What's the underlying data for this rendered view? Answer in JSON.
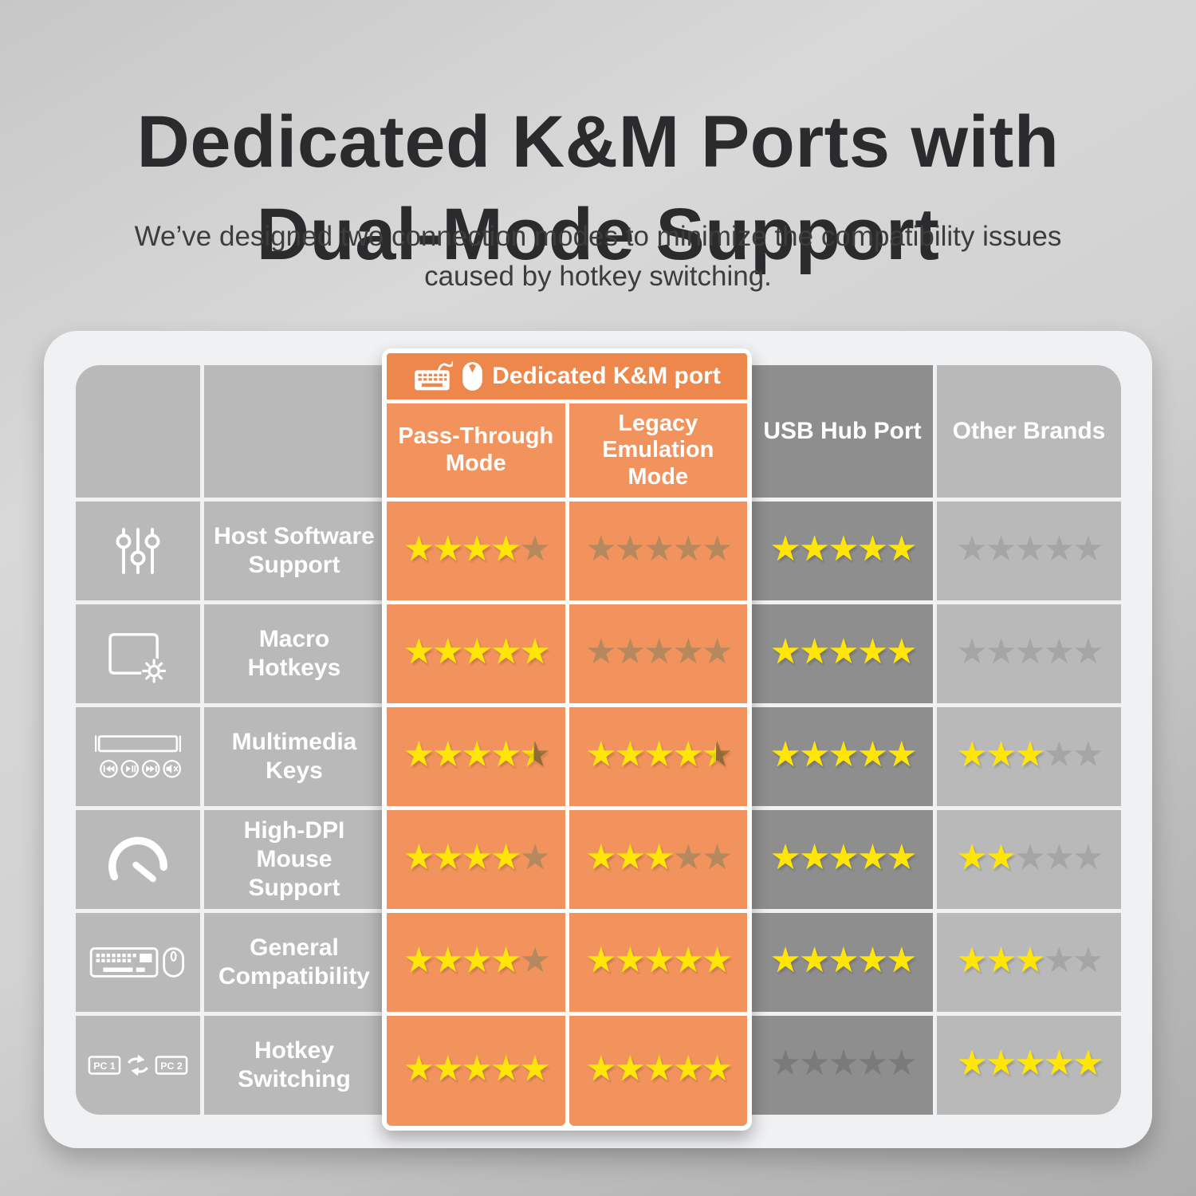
{
  "page": {
    "title_line1": "Dedicated K&M Ports with",
    "title_line2": "Dual-Mode Support",
    "subtitle_line1": "We’ve designed two connection modes to minimize the compatibility issues",
    "subtitle_line2": "caused by hotkey switching."
  },
  "table": {
    "group_label": "Dedicated K&M port",
    "group_icons": [
      "keyboard-icon",
      "mouse-icon"
    ],
    "columns": [
      {
        "id": "pass_through",
        "label": "Pass-Through Mode",
        "group": "Dedicated K&M port"
      },
      {
        "id": "legacy_emulation",
        "label": "Legacy Emulation Mode",
        "group": "Dedicated K&M port"
      },
      {
        "id": "usb_hub",
        "label": "USB Hub Port"
      },
      {
        "id": "other_brands",
        "label": "Other Brands"
      }
    ],
    "rating_scale_max": 5,
    "rows": [
      {
        "icon": "sliders-icon",
        "label": "Host Software Support",
        "ratings": [
          4,
          0,
          5,
          0
        ]
      },
      {
        "icon": "macro-key-icon",
        "label": "Macro Hotkeys",
        "ratings": [
          5,
          0,
          5,
          0
        ]
      },
      {
        "icon": "multimedia-icon",
        "label": "Multimedia Keys",
        "ratings": [
          4.5,
          4.5,
          5,
          3
        ]
      },
      {
        "icon": "speedometer-icon",
        "label": "High-DPI Mouse Support",
        "ratings": [
          4,
          3,
          5,
          2
        ]
      },
      {
        "icon": "keyboard-mouse-icon",
        "label": "General Compatibility",
        "ratings": [
          4,
          5,
          5,
          3
        ]
      },
      {
        "icon": "pc-switch-icon",
        "label": "Hotkey Switching",
        "ratings": [
          5,
          5,
          0,
          5
        ]
      }
    ]
  },
  "icons": {
    "pc_switch_labels": [
      "PC 1",
      "PC 2"
    ]
  },
  "colors": {
    "accent_orange_band": "#ee874b",
    "accent_orange_cell": "#f2935e",
    "column_gray_dark": "#8e8e8e",
    "column_gray_light": "#b9b9b9",
    "star_yellow": "#ffe607",
    "star_muted_on_orange": "#b5885e",
    "star_half_dark": "#a1763f",
    "star_muted_on_dark": "#7a7a7a",
    "star_muted_on_light": "#a5a5a5",
    "card_background": "#f0f1f3",
    "title_text": "#2b2b2d"
  },
  "chart_data": {
    "type": "table",
    "title": "Dedicated K&M Ports with Dual-Mode Support",
    "subtitle": "We’ve designed two connection modes to minimize the compatibility issues caused by hotkey switching.",
    "column_groups": [
      {
        "label": "Dedicated K&M port",
        "columns": [
          "Pass-Through Mode",
          "Legacy Emulation Mode"
        ]
      }
    ],
    "columns": [
      "Pass-Through Mode",
      "Legacy Emulation Mode",
      "USB Hub Port",
      "Other Brands"
    ],
    "rows": [
      "Host Software Support",
      "Macro Hotkeys",
      "Multimedia Keys",
      "High-DPI Mouse Support",
      "General Compatibility",
      "Hotkey Switching"
    ],
    "ratings_out_of_5": [
      [
        4,
        0,
        5,
        0
      ],
      [
        5,
        0,
        5,
        0
      ],
      [
        4.5,
        4.5,
        5,
        3
      ],
      [
        4,
        3,
        5,
        2
      ],
      [
        4,
        5,
        5,
        3
      ],
      [
        5,
        5,
        0,
        5
      ]
    ]
  }
}
